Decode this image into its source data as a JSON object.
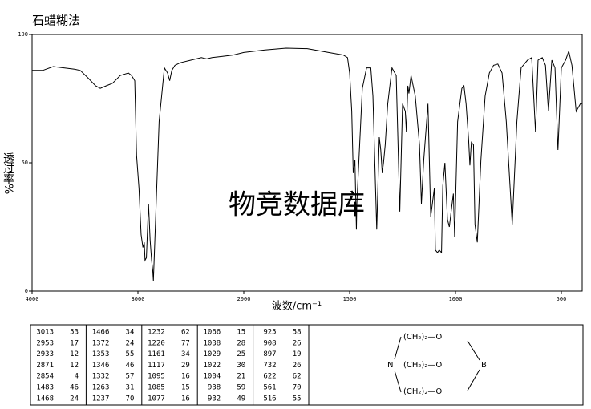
{
  "chart_data": {
    "type": "line",
    "title": "石蜡糊法",
    "xlabel": "波数/cm⁻¹",
    "ylabel": "透过率%",
    "annotation": "物竞数据库",
    "color": "#000000",
    "watermark_color": "#b4bcdc",
    "xlim": [
      4000,
      400
    ],
    "xticks": [
      4000,
      3000,
      2000,
      1500,
      1000,
      500
    ],
    "ylim": [
      0,
      100
    ],
    "yticks": [
      0,
      50,
      100
    ],
    "x": [
      4000,
      3900,
      3800,
      3700,
      3600,
      3545,
      3470,
      3400,
      3356,
      3300,
      3240,
      3167,
      3090,
      3060,
      3030,
      3013,
      2990,
      2970,
      2953,
      2940,
      2933,
      2920,
      2900,
      2885,
      2871,
      2860,
      2854,
      2840,
      2800,
      2750,
      2720,
      2700,
      2680,
      2650,
      2600,
      2500,
      2400,
      2350,
      2300,
      2200,
      2100,
      2000,
      1900,
      1800,
      1700,
      1600,
      1530,
      1510,
      1500,
      1490,
      1483,
      1475,
      1468,
      1466,
      1440,
      1420,
      1400,
      1390,
      1372,
      1360,
      1353,
      1346,
      1340,
      1332,
      1320,
      1300,
      1280,
      1263,
      1250,
      1237,
      1232,
      1225,
      1220,
      1210,
      1190,
      1170,
      1161,
      1150,
      1130,
      1117,
      1100,
      1095,
      1085,
      1077,
      1066,
      1060,
      1050,
      1038,
      1029,
      1022,
      1010,
      1004,
      990,
      970,
      960,
      950,
      938,
      932,
      925,
      915,
      908,
      897,
      880,
      860,
      840,
      820,
      800,
      780,
      760,
      732,
      710,
      690,
      660,
      640,
      622,
      610,
      590,
      575,
      561,
      545,
      530,
      516,
      500,
      480,
      465,
      450,
      430,
      410,
      400
    ],
    "values": [
      86,
      86,
      87.5,
      87,
      86.5,
      86,
      83,
      80,
      79,
      80,
      81,
      84,
      85,
      84,
      82,
      53,
      40,
      22,
      17,
      19,
      12,
      13,
      34,
      20,
      12,
      8,
      4,
      20,
      66,
      87,
      85,
      82,
      86,
      88,
      89,
      90,
      91,
      90.5,
      91,
      91.5,
      92,
      93,
      94,
      94.7,
      94.5,
      93,
      92,
      91,
      85,
      70,
      46,
      51,
      24,
      34,
      79,
      87,
      87,
      76,
      24,
      60,
      55,
      46,
      50,
      57,
      73,
      87,
      84,
      31,
      73,
      70,
      62,
      80,
      77,
      84,
      76,
      57,
      34,
      51,
      73,
      29,
      40,
      16,
      15,
      16,
      15,
      41,
      50,
      28,
      25,
      30,
      38,
      21,
      66,
      79,
      80,
      73,
      59,
      49,
      58,
      57,
      26,
      19,
      51,
      76,
      85,
      88,
      88.5,
      85,
      66,
      26,
      66,
      87,
      90,
      91,
      62,
      90,
      91,
      88,
      70,
      90,
      87,
      55,
      87,
      90,
      93.5,
      88,
      70,
      73,
      73
    ]
  },
  "peak_table": {
    "columns": [
      [
        [
          3013,
          53
        ],
        [
          2953,
          17
        ],
        [
          2933,
          12
        ],
        [
          2871,
          12
        ],
        [
          2854,
          4
        ],
        [
          1483,
          46
        ],
        [
          1468,
          24
        ]
      ],
      [
        [
          1466,
          34
        ],
        [
          1372,
          24
        ],
        [
          1353,
          55
        ],
        [
          1346,
          46
        ],
        [
          1332,
          57
        ],
        [
          1263,
          31
        ],
        [
          1237,
          70
        ]
      ],
      [
        [
          1232,
          62
        ],
        [
          1220,
          77
        ],
        [
          1161,
          34
        ],
        [
          1117,
          29
        ],
        [
          1095,
          16
        ],
        [
          1085,
          15
        ],
        [
          1077,
          16
        ]
      ],
      [
        [
          1066,
          15
        ],
        [
          1038,
          28
        ],
        [
          1029,
          25
        ],
        [
          1022,
          30
        ],
        [
          1004,
          21
        ],
        [
          938,
          59
        ],
        [
          932,
          49
        ]
      ],
      [
        [
          925,
          58
        ],
        [
          908,
          26
        ],
        [
          897,
          19
        ],
        [
          732,
          26
        ],
        [
          622,
          62
        ],
        [
          561,
          70
        ],
        [
          516,
          55
        ]
      ]
    ]
  },
  "structure": {
    "groups": [
      "(CH₂)₂—O",
      "(CH₂)₂—O",
      "(CH₂)₂—O"
    ],
    "n_atom": "N",
    "b_atom": "B"
  }
}
